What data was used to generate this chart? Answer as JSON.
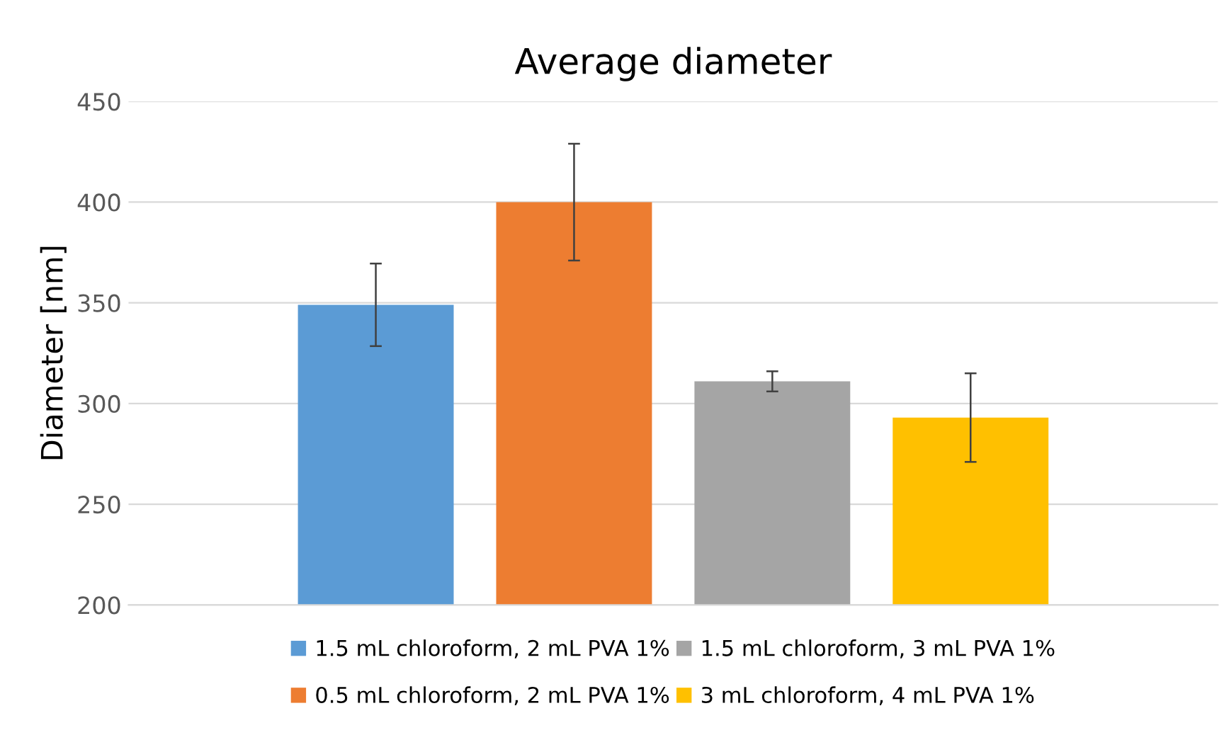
{
  "chart_data": {
    "type": "bar",
    "title": "Average diameter",
    "ylabel": "Diameter [nm]",
    "categories": [
      null
    ],
    "series": [
      {
        "name": "1.5 mL chloroform, 2 mL PVA 1%",
        "color": "#5b9bd5",
        "values": [
          349
        ],
        "errors": [
          20.5
        ]
      },
      {
        "name": "0.5 mL chloroform, 2 mL PVA 1%",
        "color": "#ed7d31",
        "values": [
          400
        ],
        "errors": [
          29
        ]
      },
      {
        "name": "1.5 mL chloroform, 3 mL PVA 1%",
        "color": "#a5a5a5",
        "values": [
          311
        ],
        "errors": [
          5
        ]
      },
      {
        "name": "3 mL chloroform, 4 mL PVA 1%",
        "color": "#ffc000",
        "values": [
          293
        ],
        "errors": [
          22
        ]
      }
    ],
    "ylim": [
      200,
      450
    ],
    "yticks": [
      200,
      250,
      300,
      350,
      400,
      450
    ],
    "grid": "y",
    "legend": "bottom"
  }
}
